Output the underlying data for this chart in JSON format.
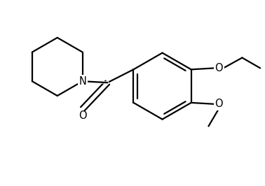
{
  "background_color": "#ffffff",
  "line_color": "#000000",
  "line_width": 1.6,
  "font_size": 10.5,
  "figsize": [
    3.78,
    2.66
  ],
  "dpi": 100,
  "N_label": "N",
  "O_label": "O",
  "ethyl_label": "O",
  "methoxy_label": "O",
  "methyl_label": "O"
}
